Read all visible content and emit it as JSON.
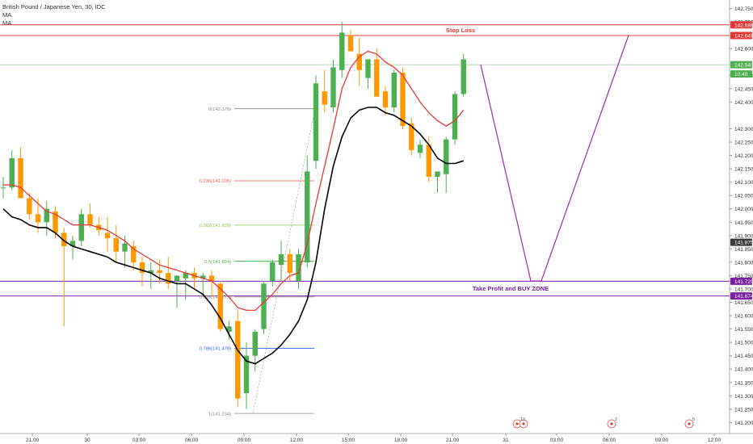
{
  "header": {
    "symbol_line": "British Pound / Japanese Yen, 30, IDC",
    "indicators": [
      "MA",
      "MA"
    ]
  },
  "chart_data": {
    "type": "candlestick",
    "ylim": [
      141.18,
      142.77
    ],
    "y_ticks": [
      "142.750",
      "142.700",
      "142.600",
      "142.500",
      "142.450",
      "142.400",
      "142.300",
      "142.250",
      "142.200",
      "142.150",
      "142.100",
      "142.050",
      "142.000",
      "141.950",
      "141.900",
      "141.850",
      "141.800",
      "141.750",
      "141.700",
      "141.650",
      "141.600",
      "141.550",
      "141.500",
      "141.450",
      "141.400",
      "141.350",
      "141.300",
      "141.250",
      "141.200"
    ],
    "x_ticks": [
      "21:00",
      "30",
      "03:00",
      "06:00",
      "09:00",
      "12:00",
      "15:00",
      "18:00",
      "21:00",
      "31",
      "03:00",
      "06:00",
      "09:00",
      "12:00"
    ],
    "candles": [
      {
        "o": 142.08,
        "h": 142.12,
        "l": 142.04,
        "c": 142.08
      },
      {
        "o": 142.08,
        "h": 142.22,
        "l": 142.07,
        "c": 142.19
      },
      {
        "o": 142.19,
        "h": 142.23,
        "l": 142.04,
        "c": 142.04
      },
      {
        "o": 142.04,
        "h": 142.06,
        "l": 141.96,
        "c": 141.98
      },
      {
        "o": 141.98,
        "h": 142.04,
        "l": 141.91,
        "c": 141.95
      },
      {
        "o": 141.95,
        "h": 142.03,
        "l": 141.9,
        "c": 142.0
      },
      {
        "o": 141.99,
        "h": 142.01,
        "l": 141.89,
        "c": 141.91
      },
      {
        "o": 141.91,
        "h": 141.93,
        "l": 141.56,
        "c": 141.86
      },
      {
        "o": 141.86,
        "h": 141.9,
        "l": 141.81,
        "c": 141.88
      },
      {
        "o": 141.88,
        "h": 142.0,
        "l": 141.86,
        "c": 141.98
      },
      {
        "o": 141.98,
        "h": 142.02,
        "l": 141.93,
        "c": 141.94
      },
      {
        "o": 141.94,
        "h": 141.97,
        "l": 141.9,
        "c": 141.92
      },
      {
        "o": 141.91,
        "h": 141.97,
        "l": 141.84,
        "c": 141.89
      },
      {
        "o": 141.89,
        "h": 141.94,
        "l": 141.8,
        "c": 141.84
      },
      {
        "o": 141.84,
        "h": 141.9,
        "l": 141.78,
        "c": 141.87
      },
      {
        "o": 141.86,
        "h": 141.88,
        "l": 141.77,
        "c": 141.8
      },
      {
        "o": 141.8,
        "h": 141.82,
        "l": 141.71,
        "c": 141.76
      },
      {
        "o": 141.76,
        "h": 141.8,
        "l": 141.7,
        "c": 141.77
      },
      {
        "o": 141.77,
        "h": 141.81,
        "l": 141.72,
        "c": 141.76
      },
      {
        "o": 141.76,
        "h": 141.82,
        "l": 141.7,
        "c": 141.72
      },
      {
        "o": 141.73,
        "h": 141.75,
        "l": 141.63,
        "c": 141.75
      },
      {
        "o": 141.74,
        "h": 141.77,
        "l": 141.66,
        "c": 141.76
      },
      {
        "o": 141.76,
        "h": 141.78,
        "l": 141.7,
        "c": 141.74
      },
      {
        "o": 141.74,
        "h": 141.76,
        "l": 141.67,
        "c": 141.75
      },
      {
        "o": 141.75,
        "h": 141.77,
        "l": 141.67,
        "c": 141.73
      },
      {
        "o": 141.72,
        "h": 141.73,
        "l": 141.54,
        "c": 141.55
      },
      {
        "o": 141.54,
        "h": 141.58,
        "l": 141.51,
        "c": 141.56
      },
      {
        "o": 141.58,
        "h": 141.62,
        "l": 141.26,
        "c": 141.29
      },
      {
        "o": 141.31,
        "h": 141.5,
        "l": 141.25,
        "c": 141.45
      },
      {
        "o": 141.45,
        "h": 141.55,
        "l": 141.39,
        "c": 141.54
      },
      {
        "o": 141.55,
        "h": 141.73,
        "l": 141.53,
        "c": 141.72
      },
      {
        "o": 141.73,
        "h": 141.81,
        "l": 141.71,
        "c": 141.8
      },
      {
        "o": 141.79,
        "h": 141.88,
        "l": 141.73,
        "c": 141.83
      },
      {
        "o": 141.83,
        "h": 141.85,
        "l": 141.73,
        "c": 141.76
      },
      {
        "o": 141.73,
        "h": 141.85,
        "l": 141.7,
        "c": 141.83
      },
      {
        "o": 141.8,
        "h": 142.2,
        "l": 141.78,
        "c": 142.14
      },
      {
        "o": 142.18,
        "h": 142.5,
        "l": 142.15,
        "c": 142.47
      },
      {
        "o": 142.44,
        "h": 142.52,
        "l": 142.36,
        "c": 142.39
      },
      {
        "o": 142.38,
        "h": 142.56,
        "l": 142.36,
        "c": 142.53
      },
      {
        "o": 142.52,
        "h": 142.7,
        "l": 142.49,
        "c": 142.66
      },
      {
        "o": 142.65,
        "h": 142.67,
        "l": 142.59,
        "c": 142.59
      },
      {
        "o": 142.58,
        "h": 142.64,
        "l": 142.46,
        "c": 142.52
      },
      {
        "o": 142.49,
        "h": 142.56,
        "l": 142.45,
        "c": 142.56
      },
      {
        "o": 142.56,
        "h": 142.6,
        "l": 142.42,
        "c": 142.42
      },
      {
        "o": 142.44,
        "h": 142.46,
        "l": 142.35,
        "c": 142.38
      },
      {
        "o": 142.38,
        "h": 142.52,
        "l": 142.36,
        "c": 142.51
      },
      {
        "o": 142.51,
        "h": 142.53,
        "l": 142.3,
        "c": 142.31
      },
      {
        "o": 142.32,
        "h": 142.34,
        "l": 142.2,
        "c": 142.22
      },
      {
        "o": 142.21,
        "h": 142.26,
        "l": 142.19,
        "c": 142.24
      },
      {
        "o": 142.24,
        "h": 142.27,
        "l": 142.1,
        "c": 142.12
      },
      {
        "o": 142.12,
        "h": 142.14,
        "l": 142.06,
        "c": 142.14
      },
      {
        "o": 142.13,
        "h": 142.27,
        "l": 142.06,
        "c": 142.26
      },
      {
        "o": 142.26,
        "h": 142.44,
        "l": 142.24,
        "c": 142.43
      },
      {
        "o": 142.43,
        "h": 142.58,
        "l": 142.42,
        "c": 142.56
      }
    ],
    "ma_fast": [
      142.09,
      142.09,
      142.08,
      142.05,
      142.02,
      141.99,
      141.98,
      141.96,
      141.94,
      141.94,
      141.94,
      141.93,
      141.92,
      141.9,
      141.88,
      141.85,
      141.83,
      141.81,
      141.79,
      141.78,
      141.77,
      141.76,
      141.75,
      141.74,
      141.73,
      141.7,
      141.67,
      141.63,
      141.62,
      141.62,
      141.65,
      141.68,
      141.72,
      141.75,
      141.76,
      141.87,
      142.02,
      142.16,
      142.3,
      142.45,
      142.53,
      142.57,
      142.59,
      142.58,
      142.55,
      142.53,
      142.5,
      142.45,
      142.4,
      142.36,
      142.33,
      142.31,
      142.33,
      142.37
    ],
    "ma_slow": [
      142.0,
      141.97,
      141.96,
      141.94,
      141.93,
      141.93,
      141.91,
      141.88,
      141.86,
      141.85,
      141.84,
      141.83,
      141.82,
      141.8,
      141.79,
      141.78,
      141.77,
      141.76,
      141.74,
      141.73,
      141.72,
      141.72,
      141.7,
      141.68,
      141.64,
      141.59,
      141.53,
      141.47,
      141.43,
      141.42,
      141.44,
      141.46,
      141.49,
      141.53,
      141.58,
      141.66,
      141.8,
      142.0,
      142.16,
      142.27,
      142.34,
      142.37,
      142.38,
      142.38,
      142.36,
      142.35,
      142.33,
      142.31,
      142.28,
      142.24,
      142.19,
      142.17,
      142.17,
      142.18
    ],
    "fib_levels": [
      {
        "label": "0(142.375)",
        "price": 142.375,
        "color": "#888888"
      },
      {
        "label": "0.236(142.105)",
        "price": 142.105,
        "color": "#ef5350"
      },
      {
        "label": "0.382(141.939)",
        "price": 141.939,
        "color": "#8bc34a"
      },
      {
        "label": "0.5(141.804)",
        "price": 141.804,
        "color": "#4caf50"
      },
      {
        "label": "0.618(141.670)",
        "price": 141.67,
        "color": "#888888"
      },
      {
        "label": "0.786(141.478)",
        "price": 141.478,
        "color": "#2962ff"
      },
      {
        "label": "1(141.234)",
        "price": 141.234,
        "color": "#888888"
      }
    ],
    "annotations": {
      "stop_loss": {
        "text": "Stop Loss",
        "upper": 142.689,
        "lower": 142.649,
        "color": "#e53935"
      },
      "take_profit": {
        "text": "Take Profit and BUY ZONE",
        "upper": 141.729,
        "lower": 141.674,
        "color": "#7b1fa2"
      },
      "current_line": 142.54,
      "projection": [
        [
          142.54
        ],
        [
          141.73
        ],
        [
          142.65
        ]
      ]
    },
    "price_labels": [
      {
        "text": "142.689",
        "price": 142.689,
        "bg": "#e53935"
      },
      {
        "text": "142.649",
        "price": 142.649,
        "bg": "#e53935"
      },
      {
        "text": "142.540",
        "price": 142.54,
        "bg": "#4caf50"
      },
      {
        "text": "10:40",
        "price": 142.505,
        "bg": "#4caf50"
      },
      {
        "text": "141.875",
        "price": 141.875,
        "bg": "#3a3a3a"
      },
      {
        "text": "141.729",
        "price": 141.729,
        "bg": "#7b1fa2"
      },
      {
        "text": "141.674",
        "price": 141.674,
        "bg": "#7b1fa2"
      }
    ],
    "events": [
      {
        "count": "12"
      },
      {
        "count": "2"
      },
      {
        "count": "5"
      }
    ],
    "colors": {
      "up": "#4caf50",
      "down": "#ff9800",
      "ma_fast": "#e53935",
      "ma_slow": "#000000",
      "projection": "#9c27b0"
    }
  }
}
